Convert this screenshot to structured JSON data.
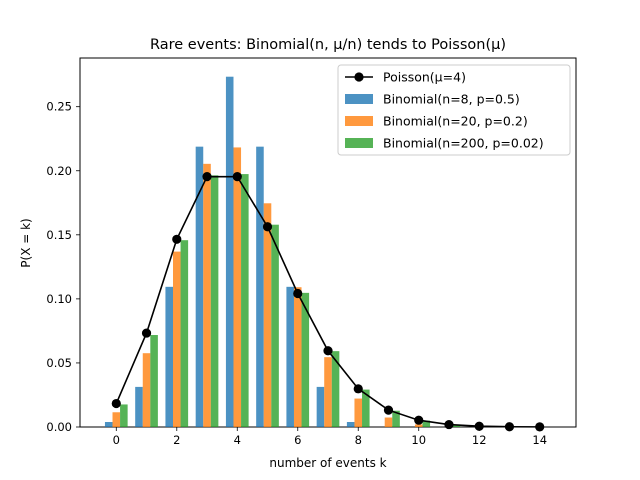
{
  "chart_data": {
    "type": "bar",
    "title": "Rare events: Binomial(n, μ/n) tends to Poisson(μ)",
    "xlabel": "number of events k",
    "ylabel": "P(X = k)",
    "xlim": [
      -1.2,
      15.2
    ],
    "ylim": [
      0,
      0.288
    ],
    "x_ticks": [
      0,
      2,
      4,
      6,
      8,
      10,
      12,
      14
    ],
    "y_ticks": [
      0.0,
      0.05,
      0.1,
      0.15,
      0.2,
      0.25
    ],
    "grid": false,
    "legend_position": "top-right",
    "x": [
      0,
      1,
      2,
      3,
      4,
      5,
      6,
      7,
      8,
      9,
      10,
      11,
      12,
      13,
      14
    ],
    "series": [
      {
        "name": "Binomial(n=8, p=0.5)",
        "kind": "bar",
        "color": "#1f77b4",
        "values": [
          0.0039,
          0.0313,
          0.1094,
          0.2188,
          0.2734,
          0.2188,
          0.1094,
          0.0313,
          0.0039,
          0,
          0,
          0,
          0,
          0,
          0
        ]
      },
      {
        "name": "Binomial(n=20, p=0.2)",
        "kind": "bar",
        "color": "#ff7f0e",
        "values": [
          0.0115,
          0.0576,
          0.1369,
          0.2054,
          0.2182,
          0.1746,
          0.1091,
          0.0545,
          0.0222,
          0.0074,
          0.002,
          0.0005,
          0.0001,
          0.0,
          0.0
        ]
      },
      {
        "name": "Binomial(n=200, p=0.02)",
        "kind": "bar",
        "color": "#2ca02c",
        "values": [
          0.0176,
          0.0718,
          0.1458,
          0.1964,
          0.1974,
          0.1579,
          0.1047,
          0.0592,
          0.0292,
          0.0127,
          0.005,
          0.0018,
          0.0006,
          0.0002,
          0.0
        ]
      },
      {
        "name": "Poisson(μ=4)",
        "kind": "line",
        "color": "#000000",
        "values": [
          0.0183,
          0.0733,
          0.1465,
          0.1954,
          0.1954,
          0.1563,
          0.1042,
          0.0595,
          0.0298,
          0.0132,
          0.0053,
          0.0019,
          0.0006,
          0.0002,
          0.0001
        ]
      }
    ]
  }
}
